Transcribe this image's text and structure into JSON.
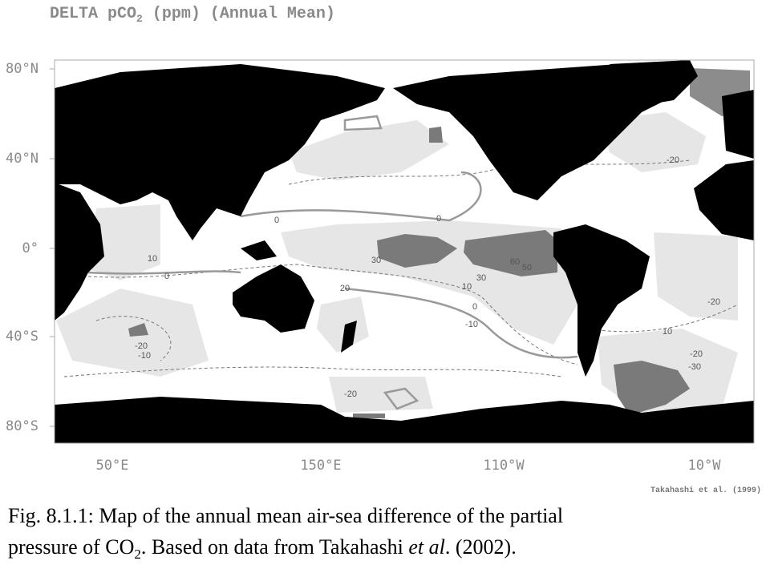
{
  "header": {
    "title_parts": [
      "DELTA pCO",
      "2",
      " (ppm) (Annual Mean)"
    ]
  },
  "map": {
    "lat_labels": [
      "80°N",
      "40°N",
      "0°",
      "40°S",
      "80°S"
    ],
    "lon_labels": [
      "50°E",
      "150°E",
      "110°W",
      "10°W"
    ],
    "contour_labels": [
      "-20",
      "0",
      "10",
      "0",
      "30",
      "20",
      "60",
      "50",
      "30",
      "10",
      "0",
      "-10",
      "-20",
      "-10",
      "-20",
      "10",
      "-20",
      "-30",
      "-20",
      "0"
    ]
  },
  "credit": "Takahashi et al. (1999)",
  "caption": {
    "line1": "Fig. 8.1.1: Map of the annual mean air-sea difference of the partial",
    "line2_parts": [
      "pressure of CO",
      "2",
      ". Based on data from Takahashi ",
      "et al",
      ". (2002)."
    ]
  }
}
